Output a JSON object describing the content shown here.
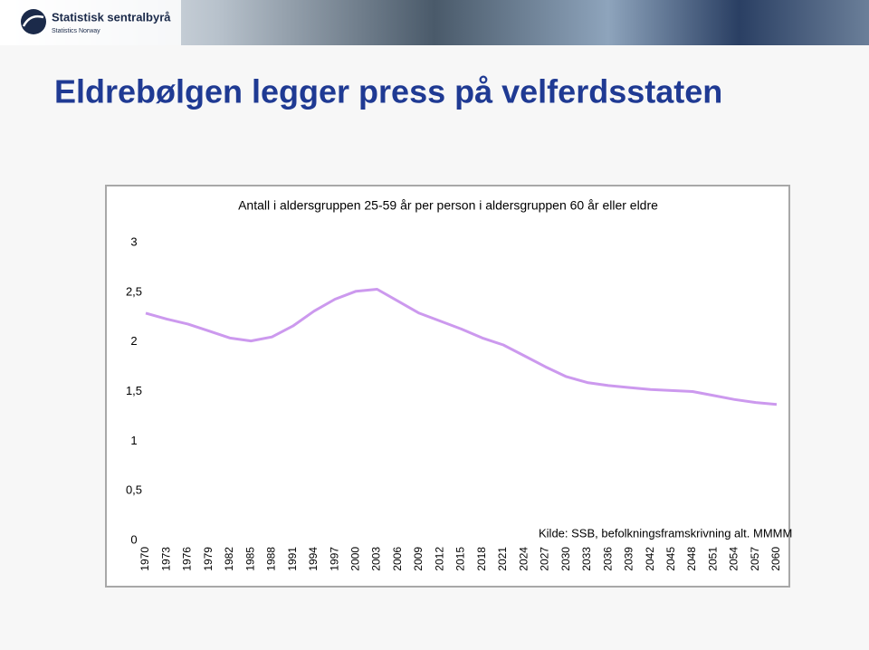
{
  "header": {
    "logo_name": "Statistisk sentralbyrå",
    "logo_sub": "Statistics Norway"
  },
  "slide_title": "Eldrebølgen legger press på velferdsstaten",
  "chart_data": {
    "type": "line",
    "title": "Antall i aldersgruppen 25-59 år per person i aldersgruppen 60 år eller eldre",
    "note": "Kilde: SSB, befolkningsframskrivning alt. MMMM",
    "x": [
      1970,
      1973,
      1976,
      1979,
      1982,
      1985,
      1988,
      1991,
      1994,
      1997,
      2000,
      2003,
      2006,
      2009,
      2012,
      2015,
      2018,
      2021,
      2024,
      2027,
      2030,
      2033,
      2036,
      2039,
      2042,
      2045,
      2048,
      2051,
      2054,
      2057,
      2060
    ],
    "values": [
      2.29,
      2.23,
      2.18,
      2.11,
      2.04,
      2.01,
      2.05,
      2.16,
      2.31,
      2.43,
      2.51,
      2.53,
      2.41,
      2.29,
      2.21,
      2.13,
      2.04,
      1.97,
      1.86,
      1.75,
      1.65,
      1.59,
      1.56,
      1.54,
      1.52,
      1.51,
      1.5,
      1.46,
      1.42,
      1.39,
      1.37
    ],
    "color": "#cc99ee",
    "xlim": [
      1970,
      2060
    ],
    "xticks": [
      1970,
      1973,
      1976,
      1979,
      1982,
      1985,
      1988,
      1991,
      1994,
      1997,
      2000,
      2003,
      2006,
      2009,
      2012,
      2015,
      2018,
      2021,
      2024,
      2027,
      2030,
      2033,
      2036,
      2039,
      2042,
      2045,
      2048,
      2051,
      2054,
      2057,
      2060
    ],
    "ylim": [
      0,
      3
    ],
    "yticks": [
      0,
      {
        "value": 0.5,
        "label": "0,5"
      },
      1,
      {
        "value": 1.5,
        "label": "1,5"
      },
      2,
      {
        "value": 2.5,
        "label": "2,5"
      },
      3
    ],
    "grid": false
  }
}
